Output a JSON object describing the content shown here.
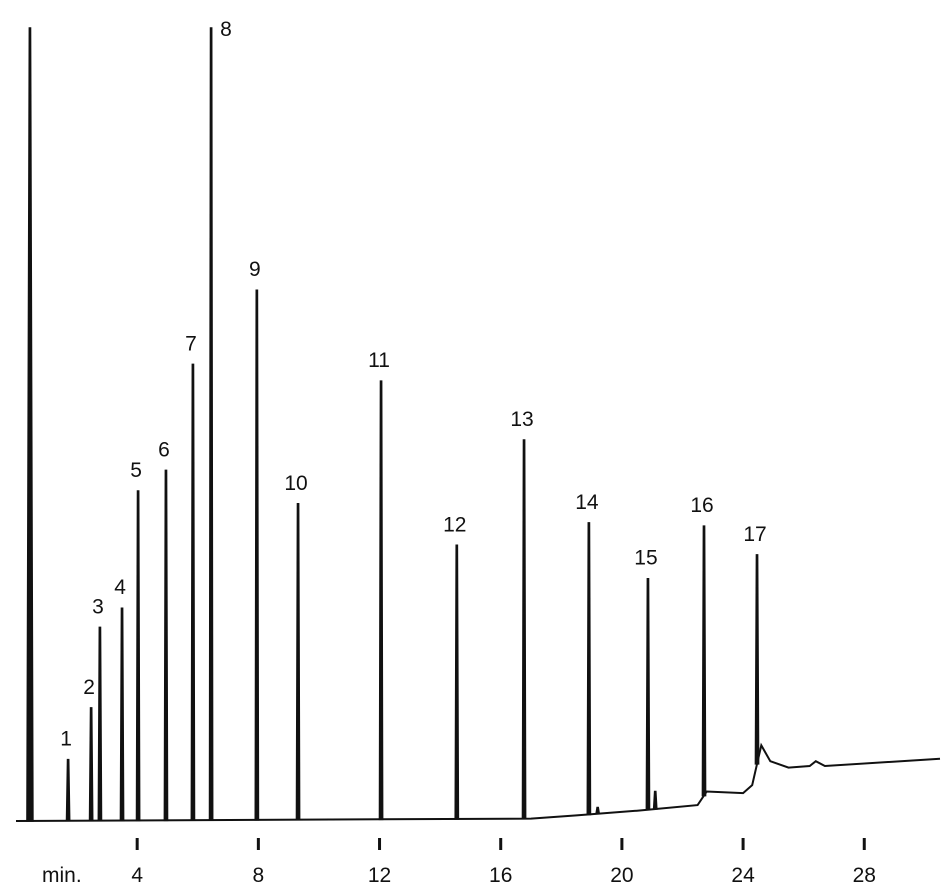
{
  "chart_data": {
    "type": "chromatogram",
    "x_label": "min.",
    "xlim": [
      0,
      30.5
    ],
    "xticks": [
      4,
      8,
      12,
      16,
      20,
      24,
      28
    ],
    "ylim": [
      0,
      100
    ],
    "color": "#111111",
    "peaks": {
      "labels": [
        null,
        "1",
        "2",
        "3",
        "4",
        "5",
        "6",
        "7",
        "8",
        "9",
        "10",
        "11",
        "12",
        "13",
        "14",
        null,
        "15",
        null,
        "16",
        "17"
      ],
      "times": [
        0.46,
        1.72,
        2.48,
        2.77,
        3.5,
        4.03,
        4.95,
        5.84,
        6.44,
        7.95,
        9.31,
        12.05,
        14.55,
        16.77,
        18.91,
        19.2,
        20.86,
        21.1,
        22.71,
        24.46
      ],
      "values": [
        100,
        8.2,
        14.7,
        24.8,
        27.2,
        41.9,
        44.5,
        57.8,
        100,
        67.1,
        40.3,
        55.7,
        35.1,
        48.3,
        37.9,
        2.2,
        30.9,
        4.2,
        37.5,
        33.9
      ]
    },
    "baseline": {
      "x": [
        0,
        17,
        18.5,
        20.5,
        22.5,
        22.8,
        24,
        24.3,
        24.6,
        24.9,
        25.5,
        26.2,
        26.4,
        26.7,
        30.5
      ],
      "values": [
        0.5,
        0.8,
        1.2,
        1.8,
        2.5,
        4.2,
        4.0,
        5.0,
        10,
        8,
        7.2,
        7.4,
        8,
        7.4,
        8.3
      ]
    }
  }
}
